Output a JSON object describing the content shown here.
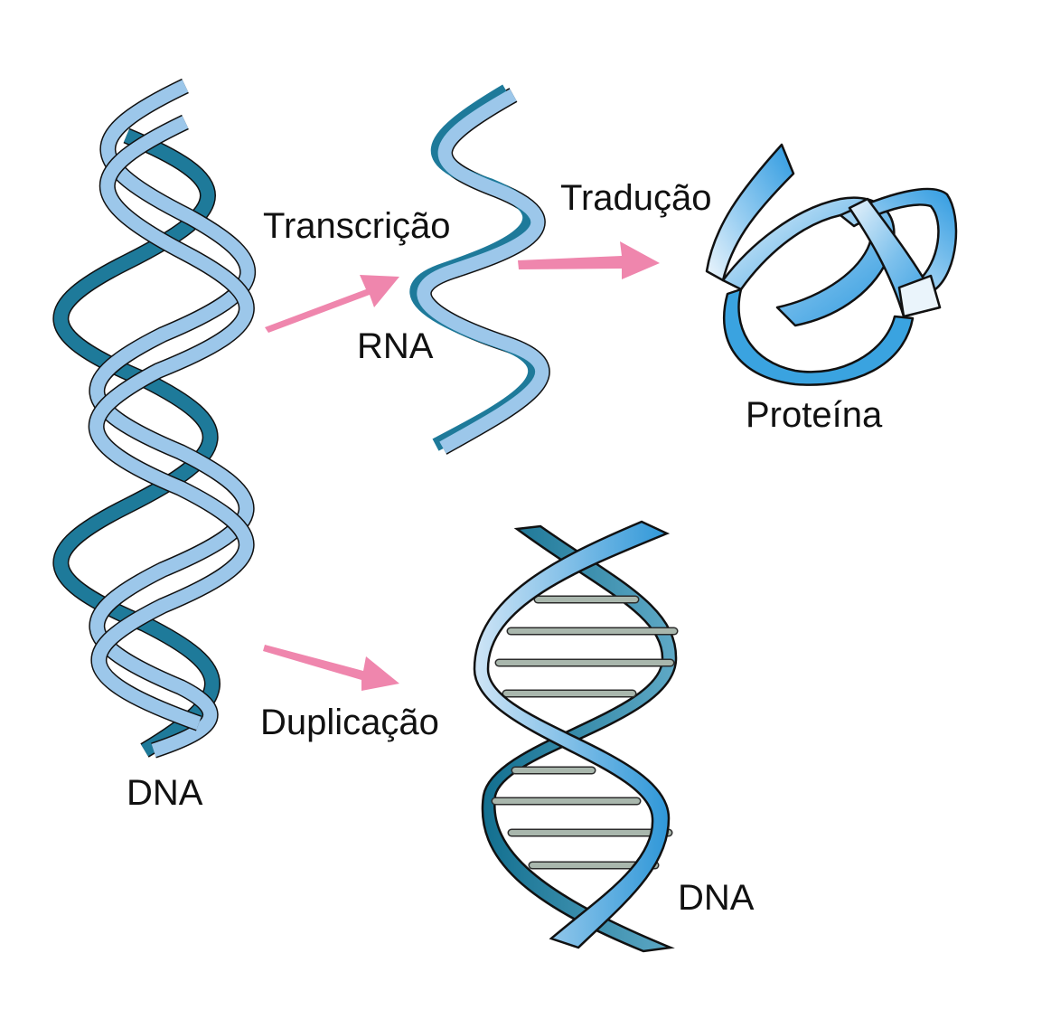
{
  "labels": {
    "dna_left": "DNA",
    "transcription": "Transcrição",
    "rna": "RNA",
    "translation": "Tradução",
    "protein": "Proteína",
    "duplication": "Duplicação",
    "dna_right": "DNA"
  },
  "colors": {
    "strand_light": "#9cc7ea",
    "strand_dark": "#1e7a9a",
    "protein_ribbon": "#3aa3e0",
    "arrow": "#ef86ad",
    "base_pair": "#a9b7ad"
  }
}
